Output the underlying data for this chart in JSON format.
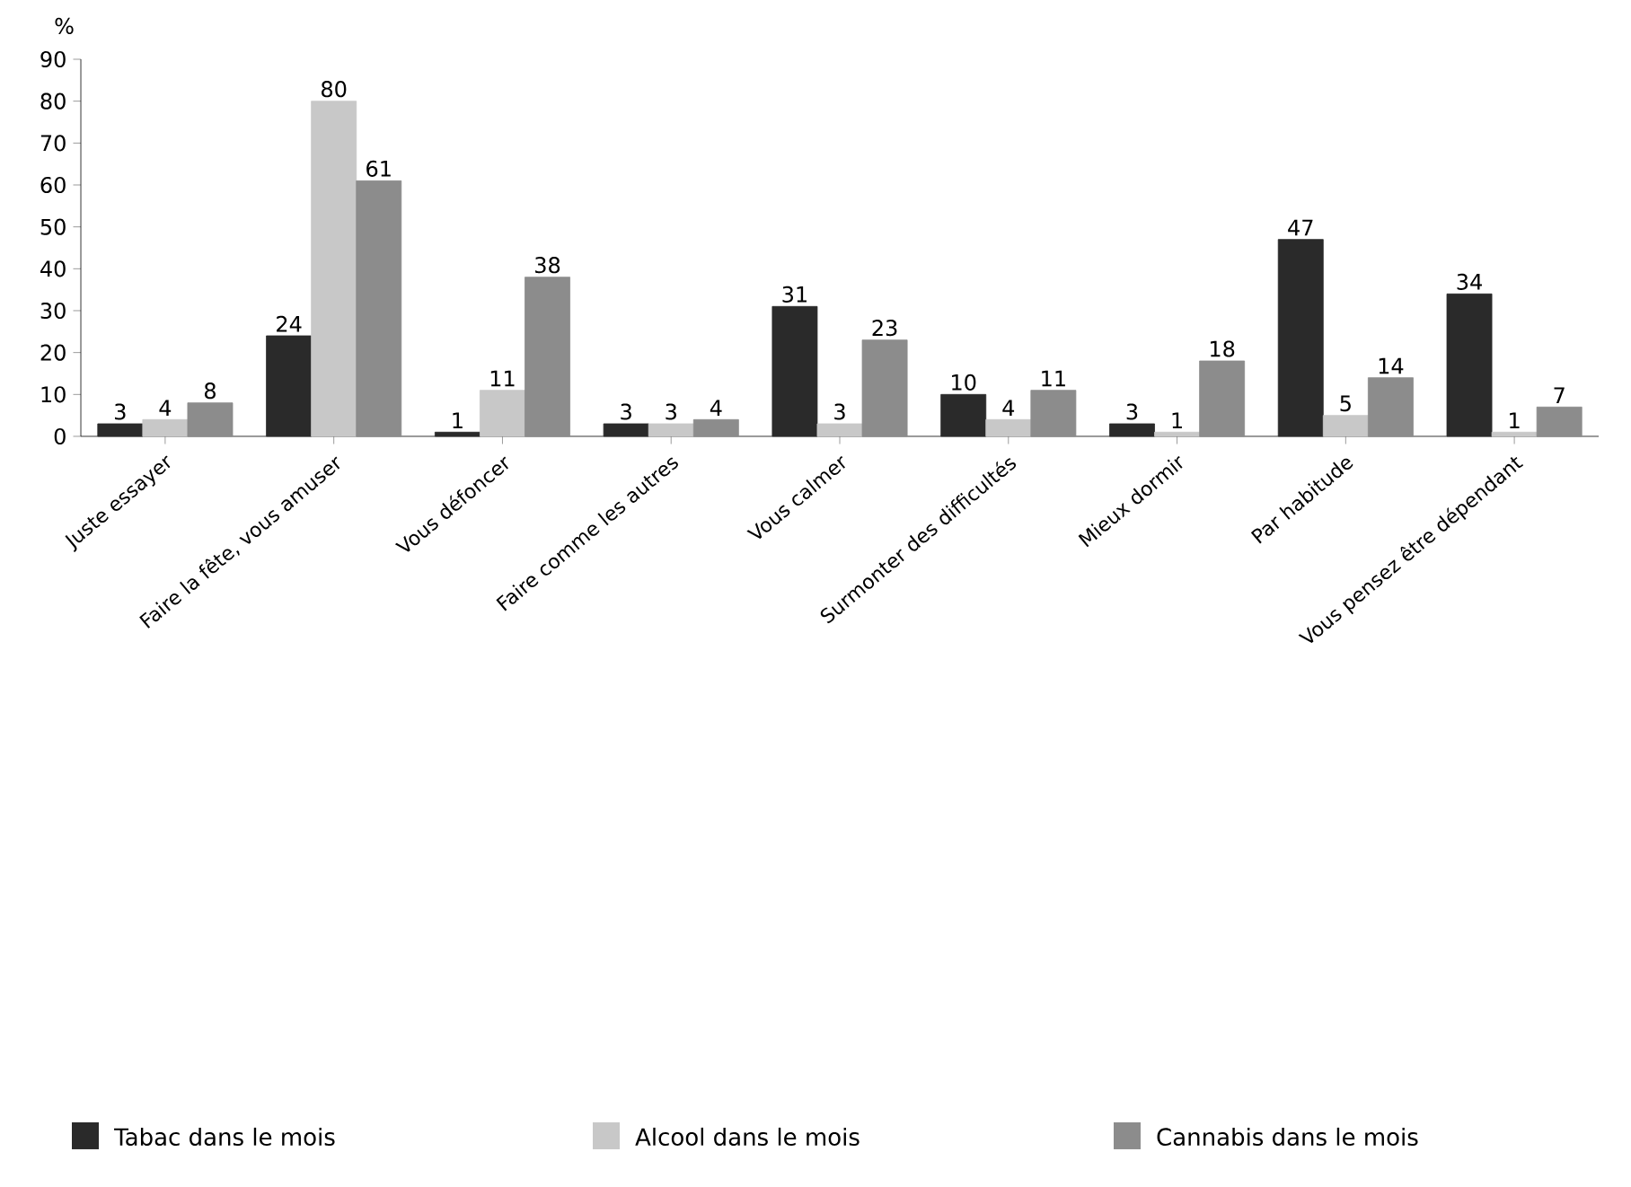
{
  "chart_data": {
    "type": "bar",
    "ylabel": "%",
    "categories": [
      "Juste essayer",
      "Faire la fête, vous amuser",
      "Vous défoncer",
      "Faire comme les autres",
      "Vous calmer",
      "Surmonter des difficultés",
      "Mieux dormir",
      "Par habitude",
      "Vous pensez être dépendant"
    ],
    "series": [
      {
        "name": "Tabac dans le mois",
        "color": "#2a2a2a",
        "values": [
          3,
          24,
          1,
          3,
          31,
          10,
          3,
          47,
          34
        ]
      },
      {
        "name": "Alcool dans le mois",
        "color": "#c8c8c8",
        "values": [
          4,
          80,
          11,
          3,
          3,
          4,
          1,
          5,
          1
        ]
      },
      {
        "name": "Cannabis dans le mois",
        "color": "#8c8c8c",
        "values": [
          8,
          61,
          38,
          4,
          23,
          11,
          18,
          14,
          7
        ]
      }
    ],
    "ylim": [
      0,
      90
    ],
    "yticks": [
      0,
      10,
      20,
      30,
      40,
      50,
      60,
      70,
      80,
      90
    ],
    "data_labels": true,
    "legend": "bottom",
    "grid": false
  }
}
